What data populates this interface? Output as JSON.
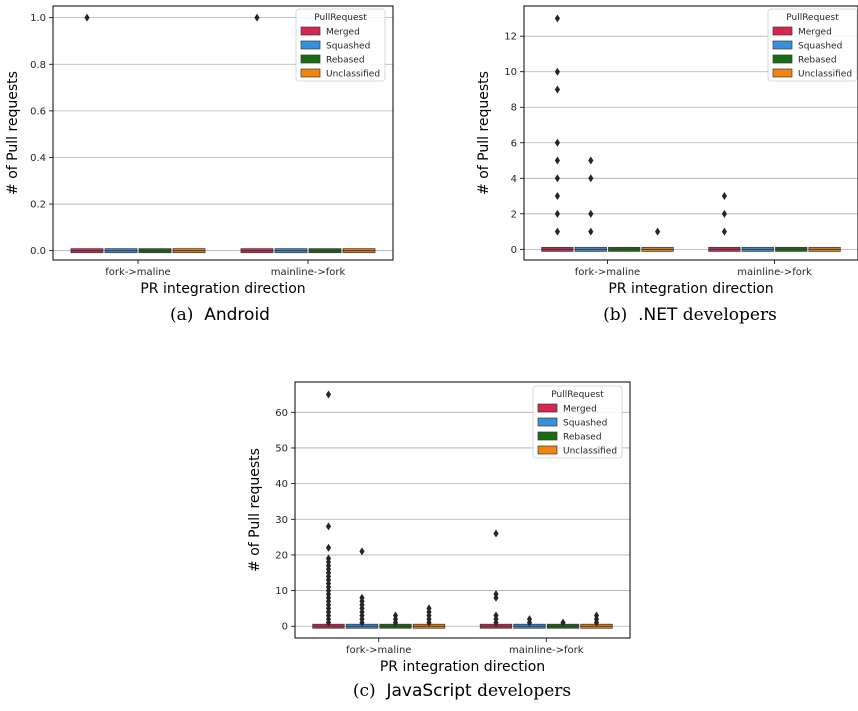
{
  "colors": {
    "Merged": "#d6264f",
    "Squashed": "#3a8fdd",
    "Rebased": "#1a6b12",
    "Unclassified": "#f0850f"
  },
  "chart_data": [
    {
      "type": "box",
      "caption_prefix": "(a)",
      "caption_name": "Android",
      "caption_suffix": "",
      "xlabel": "PR integration direction",
      "ylabel": "# of Pull requests",
      "categories": [
        "fork->maline",
        "mainline->fork"
      ],
      "yticks": [
        0.0,
        0.2,
        0.4,
        0.6,
        0.8,
        1.0
      ],
      "yticklabels": [
        "0.0",
        "0.2",
        "0.4",
        "0.6",
        "0.8",
        "1.0"
      ],
      "ylim": [
        -0.04,
        1.05
      ],
      "grid": true,
      "legend": {
        "title": "PullRequest",
        "placement": "top-right",
        "entries": [
          "Merged",
          "Squashed",
          "Rebased",
          "Unclassified"
        ]
      },
      "series": [
        {
          "name": "Merged",
          "outliers": [
            [
              1
            ],
            [
              1
            ]
          ]
        },
        {
          "name": "Squashed",
          "outliers": [
            [],
            []
          ]
        },
        {
          "name": "Rebased",
          "outliers": [
            [],
            []
          ]
        },
        {
          "name": "Unclassified",
          "outliers": [
            [],
            []
          ]
        }
      ]
    },
    {
      "type": "box",
      "caption_prefix": "(b)",
      "caption_name": ".NET",
      "caption_suffix": " developers",
      "xlabel": "PR integration direction",
      "ylabel": "# of Pull requests",
      "categories": [
        "fork->maline",
        "mainline->fork"
      ],
      "yticks": [
        0,
        2,
        4,
        6,
        8,
        10,
        12
      ],
      "yticklabels": [
        "0",
        "2",
        "4",
        "6",
        "8",
        "10",
        "12"
      ],
      "ylim": [
        -0.6,
        13.7
      ],
      "grid": true,
      "legend": {
        "title": "PullRequest",
        "placement": "top-right",
        "entries": [
          "Merged",
          "Squashed",
          "Rebased",
          "Unclassified"
        ]
      },
      "series": [
        {
          "name": "Merged",
          "outliers": [
            [
              1,
              2,
              3,
              4,
              5,
              6,
              9,
              10,
              13
            ],
            [
              1,
              2,
              3
            ]
          ]
        },
        {
          "name": "Squashed",
          "outliers": [
            [
              1,
              2,
              4,
              5
            ],
            []
          ]
        },
        {
          "name": "Rebased",
          "outliers": [
            [],
            []
          ]
        },
        {
          "name": "Unclassified",
          "outliers": [
            [
              1
            ],
            []
          ]
        }
      ]
    },
    {
      "type": "box",
      "caption_prefix": "(c)",
      "caption_name": "JavaScript",
      "caption_suffix": " developers",
      "xlabel": "PR integration direction",
      "ylabel": "# of Pull requests",
      "categories": [
        "fork->maline",
        "mainline->fork"
      ],
      "yticks": [
        0,
        10,
        20,
        30,
        40,
        50,
        60
      ],
      "yticklabels": [
        "0",
        "10",
        "20",
        "30",
        "40",
        "50",
        "60"
      ],
      "ylim": [
        -3.3,
        68.5
      ],
      "grid": true,
      "legend": {
        "title": "PullRequest",
        "placement": "top-right",
        "entries": [
          "Merged",
          "Squashed",
          "Rebased",
          "Unclassified"
        ]
      },
      "series": [
        {
          "name": "Merged",
          "outliers": [
            [
              1,
              2,
              3,
              4,
              5,
              6,
              7,
              8,
              9,
              10,
              11,
              12,
              13,
              14,
              15,
              16,
              17,
              18,
              19,
              22,
              28,
              65
            ],
            [
              1,
              2,
              3,
              8,
              9,
              26
            ]
          ]
        },
        {
          "name": "Squashed",
          "outliers": [
            [
              1,
              2,
              3,
              4,
              5,
              6,
              7,
              8,
              21
            ],
            [
              1,
              2
            ]
          ]
        },
        {
          "name": "Rebased",
          "outliers": [
            [
              1,
              2,
              3
            ],
            [
              1
            ]
          ]
        },
        {
          "name": "Unclassified",
          "outliers": [
            [
              1,
              2,
              3,
              4,
              5
            ],
            [
              1,
              2,
              3
            ]
          ]
        }
      ]
    }
  ]
}
